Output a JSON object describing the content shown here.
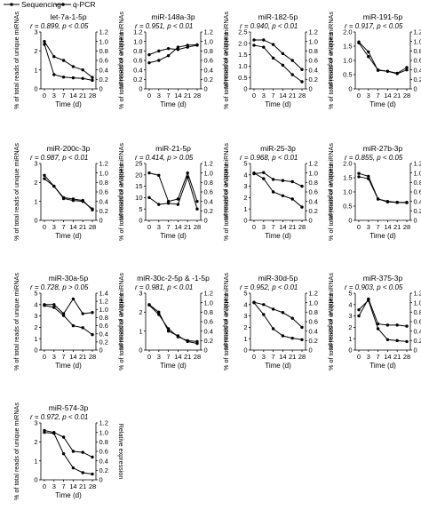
{
  "legend": {
    "sequencing_label": "Sequencing",
    "qpcr_label": "q-PCR"
  },
  "axes": {
    "y_left_label": "% of total reads of unique miRNAs",
    "y_right_label": "Relative expression",
    "x_label": "Time (d)"
  },
  "colors": {
    "line": "#000000",
    "background": "#ffffff"
  },
  "chart_data": [
    {
      "type": "line",
      "title": "let-7a-1-5p",
      "stat": "r = 0.899, p < 0.05",
      "categories": [
        "0",
        "3",
        "7",
        "14",
        "21",
        "28"
      ],
      "ylim_left": [
        0,
        3
      ],
      "yticks_left": [
        "0",
        "1",
        "2",
        "3"
      ],
      "ylim_right": [
        0,
        1.2
      ],
      "yticks_right": [
        "0",
        "0.2",
        "0.4",
        "0.6",
        "0.8",
        "1.0",
        "1.2"
      ],
      "series": [
        {
          "name": "Sequencing",
          "axis": "left",
          "values": [
            2.35,
            0.75,
            0.62,
            0.58,
            0.55,
            0.45
          ]
        },
        {
          "name": "q-PCR",
          "axis": "right",
          "values": [
            1.0,
            0.68,
            0.6,
            0.47,
            0.4,
            0.24
          ]
        }
      ]
    },
    {
      "type": "line",
      "title": "miR-148a-3p",
      "stat": "r = 0.951, p < 0.01",
      "categories": [
        "0",
        "3",
        "7",
        "14",
        "21",
        "28"
      ],
      "ylim_left": [
        0,
        1.2
      ],
      "yticks_left": [
        "0",
        "0.2",
        "0.4",
        "0.6",
        "0.8",
        "1.0",
        "1.2"
      ],
      "ylim_right": [
        0,
        1.2
      ],
      "yticks_right": [
        "0",
        "0.2",
        "0.4",
        "0.6",
        "0.8",
        "1.0",
        "1.2"
      ],
      "series": [
        {
          "name": "Sequencing",
          "axis": "left",
          "values": [
            0.72,
            0.8,
            0.85,
            0.83,
            0.88,
            0.92
          ]
        },
        {
          "name": "q-PCR",
          "axis": "right",
          "values": [
            0.55,
            0.6,
            0.7,
            0.88,
            0.92,
            0.93
          ]
        }
      ]
    },
    {
      "type": "line",
      "title": "miR-182-5p",
      "stat": "r = 0.940, p < 0.01",
      "categories": [
        "0",
        "3",
        "7",
        "14",
        "21",
        "28"
      ],
      "ylim_left": [
        0,
        2.5
      ],
      "yticks_left": [
        "0",
        "0.5",
        "1.0",
        "1.5",
        "2.0",
        "2.5"
      ],
      "ylim_right": [
        0,
        1.2
      ],
      "yticks_right": [
        "0",
        "0.2",
        "0.4",
        "0.6",
        "0.8",
        "1.0",
        "1.2"
      ],
      "series": [
        {
          "name": "Sequencing",
          "axis": "left",
          "values": [
            2.15,
            2.15,
            1.95,
            1.55,
            1.25,
            0.85
          ]
        },
        {
          "name": "q-PCR",
          "axis": "right",
          "values": [
            0.92,
            0.88,
            0.65,
            0.5,
            0.3,
            0.15
          ]
        }
      ]
    },
    {
      "type": "line",
      "title": "miR-191-5p",
      "stat": "r = 0.917, p < 0.05",
      "categories": [
        "0",
        "3",
        "7",
        "14",
        "21",
        "28"
      ],
      "ylim_left": [
        0,
        2.0
      ],
      "yticks_left": [
        "0",
        "0.5",
        "1.0",
        "1.5",
        "2.0"
      ],
      "ylim_right": [
        0,
        1.2
      ],
      "yticks_right": [
        "0",
        "0.2",
        "0.4",
        "0.6",
        "0.8",
        "1.0",
        "1.2"
      ],
      "series": [
        {
          "name": "Sequencing",
          "axis": "left",
          "values": [
            1.65,
            1.3,
            0.65,
            0.62,
            0.55,
            0.75
          ]
        },
        {
          "name": "q-PCR",
          "axis": "right",
          "values": [
            0.97,
            0.68,
            0.4,
            0.37,
            0.32,
            0.4
          ]
        }
      ]
    },
    {
      "type": "line",
      "title": "miR-200c-3p",
      "stat": "r = 0.987, p < 0.01",
      "categories": [
        "0",
        "3",
        "7",
        "14",
        "21",
        "28"
      ],
      "ylim_left": [
        0,
        3
      ],
      "yticks_left": [
        "0",
        "1",
        "2",
        "3"
      ],
      "ylim_right": [
        0,
        1.2
      ],
      "yticks_right": [
        "0",
        "0.2",
        "0.4",
        "0.6",
        "0.8",
        "1.0",
        "1.2"
      ],
      "series": [
        {
          "name": "Sequencing",
          "axis": "left",
          "values": [
            2.2,
            1.8,
            1.15,
            1.05,
            1.0,
            0.6
          ]
        },
        {
          "name": "q-PCR",
          "axis": "right",
          "values": [
            0.95,
            0.72,
            0.48,
            0.45,
            0.42,
            0.22
          ]
        }
      ]
    },
    {
      "type": "line",
      "title": "miR-21-5p",
      "stat": "r = 0.414, p > 0.05",
      "categories": [
        "0",
        "3",
        "7",
        "14",
        "21",
        "28"
      ],
      "ylim_left": [
        0,
        25
      ],
      "yticks_left": [
        "0",
        "5",
        "10",
        "15",
        "20",
        "25"
      ],
      "ylim_right": [
        0,
        1.2
      ],
      "yticks_right": [
        "0",
        "0.2",
        "0.4",
        "0.6",
        "0.8",
        "1.0",
        "1.2"
      ],
      "series": [
        {
          "name": "Sequencing",
          "axis": "left",
          "values": [
            10,
            7,
            7.5,
            7,
            19,
            5
          ]
        },
        {
          "name": "q-PCR",
          "axis": "right",
          "values": [
            1.0,
            0.95,
            0.4,
            0.45,
            1.0,
            0.4
          ]
        }
      ]
    },
    {
      "type": "line",
      "title": "miR-25-3p",
      "stat": "r = 0.968, p < 0.01",
      "categories": [
        "0",
        "3",
        "7",
        "14",
        "21",
        "28"
      ],
      "ylim_left": [
        0,
        5
      ],
      "yticks_left": [
        "0",
        "1",
        "2",
        "3",
        "4",
        "5"
      ],
      "ylim_right": [
        0,
        1.2
      ],
      "yticks_right": [
        "0",
        "0.2",
        "0.4",
        "0.6",
        "0.8",
        "1.0",
        "1.2"
      ],
      "series": [
        {
          "name": "Sequencing",
          "axis": "left",
          "values": [
            4.1,
            4.2,
            3.6,
            3.5,
            3.4,
            3.0
          ]
        },
        {
          "name": "q-PCR",
          "axis": "right",
          "values": [
            1.0,
            0.88,
            0.6,
            0.52,
            0.45,
            0.28
          ]
        }
      ]
    },
    {
      "type": "line",
      "title": "miR-27b-3p",
      "stat": "r = 0.855, p < 0.05",
      "categories": [
        "0",
        "3",
        "7",
        "14",
        "21",
        "28"
      ],
      "ylim_left": [
        0,
        2.0
      ],
      "yticks_left": [
        "0",
        "0.5",
        "1.0",
        "1.5",
        "2.0"
      ],
      "ylim_right": [
        0,
        1.2
      ],
      "yticks_right": [
        "0",
        "0.2",
        "0.4",
        "0.6",
        "0.8",
        "1.0",
        "1.2"
      ],
      "series": [
        {
          "name": "Sequencing",
          "axis": "left",
          "values": [
            1.65,
            1.55,
            0.75,
            0.65,
            0.63,
            0.62
          ]
        },
        {
          "name": "q-PCR",
          "axis": "right",
          "values": [
            0.92,
            0.88,
            0.45,
            0.4,
            0.38,
            0.38
          ]
        }
      ]
    },
    {
      "type": "line",
      "title": "miR-30a-5p",
      "stat": "r = 0.728, p > 0.05",
      "categories": [
        "0",
        "3",
        "7",
        "14",
        "21",
        "28"
      ],
      "ylim_left": [
        0,
        5
      ],
      "yticks_left": [
        "0",
        "1",
        "2",
        "3",
        "4",
        "5"
      ],
      "ylim_right": [
        0,
        1.4
      ],
      "yticks_right": [
        "0",
        "0.2",
        "0.4",
        "0.6",
        "0.8",
        "1.0",
        "1.2",
        "1.4"
      ],
      "series": [
        {
          "name": "Sequencing",
          "axis": "left",
          "values": [
            4.0,
            4.0,
            3.2,
            4.5,
            3.2,
            3.3
          ]
        },
        {
          "name": "q-PCR",
          "axis": "right",
          "values": [
            1.1,
            1.05,
            0.85,
            0.6,
            0.55,
            0.38
          ]
        }
      ]
    },
    {
      "type": "line",
      "title": "miR-30c-2-5p & -1-5p",
      "stat": "r = 0.981, p < 0.01",
      "categories": [
        "0",
        "3",
        "7",
        "14",
        "21",
        "28"
      ],
      "ylim_left": [
        0,
        3
      ],
      "yticks_left": [
        "0",
        "1",
        "2",
        "3"
      ],
      "ylim_right": [
        0,
        1.2
      ],
      "yticks_right": [
        "0",
        "0.2",
        "0.4",
        "0.6",
        "0.8",
        "1.0",
        "1.2"
      ],
      "series": [
        {
          "name": "Sequencing",
          "axis": "left",
          "values": [
            2.4,
            2.0,
            1.0,
            0.75,
            0.45,
            0.35
          ]
        },
        {
          "name": "q-PCR",
          "axis": "right",
          "values": [
            0.95,
            0.75,
            0.45,
            0.28,
            0.2,
            0.18
          ]
        }
      ]
    },
    {
      "type": "line",
      "title": "miR-30d-5p",
      "stat": "r = 0.952, p < 0.01",
      "categories": [
        "0",
        "3",
        "7",
        "14",
        "21",
        "28"
      ],
      "ylim_left": [
        0,
        5
      ],
      "yticks_left": [
        "0",
        "1",
        "2",
        "3",
        "4",
        "5"
      ],
      "ylim_right": [
        0,
        1.2
      ],
      "yticks_right": [
        "0",
        "0.2",
        "0.4",
        "0.6",
        "0.8",
        "1.0",
        "1.2"
      ],
      "series": [
        {
          "name": "Sequencing",
          "axis": "left",
          "values": [
            4.2,
            4.0,
            3.6,
            3.3,
            2.8,
            2.0
          ]
        },
        {
          "name": "q-PCR",
          "axis": "right",
          "values": [
            1.0,
            0.75,
            0.45,
            0.3,
            0.25,
            0.22
          ]
        }
      ]
    },
    {
      "type": "line",
      "title": "miR-375-3p",
      "stat": "r = 0.903, p < 0.05",
      "categories": [
        "0",
        "3",
        "7",
        "14",
        "21",
        "28"
      ],
      "ylim_left": [
        0,
        5
      ],
      "yticks_left": [
        "0",
        "1",
        "2",
        "3",
        "4",
        "5"
      ],
      "ylim_right": [
        0,
        1.2
      ],
      "yticks_right": [
        "0",
        "0.2",
        "0.4",
        "0.6",
        "0.8",
        "1.0",
        "1.2"
      ],
      "series": [
        {
          "name": "Sequencing",
          "axis": "left",
          "values": [
            3.0,
            4.5,
            2.3,
            2.2,
            2.2,
            2.1
          ]
        },
        {
          "name": "q-PCR",
          "axis": "right",
          "values": [
            0.85,
            1.05,
            0.45,
            0.22,
            0.2,
            0.18
          ]
        }
      ]
    },
    {
      "type": "line",
      "title": "miR-574-3p",
      "stat": "r = 0.972, p < 0.01",
      "categories": [
        "0",
        "3",
        "7",
        "14",
        "21",
        "28"
      ],
      "ylim_left": [
        0,
        3
      ],
      "yticks_left": [
        "0",
        "1",
        "2",
        "3"
      ],
      "ylim_right": [
        0,
        1.2
      ],
      "yticks_right": [
        "0",
        "0.2",
        "0.4",
        "0.6",
        "0.8",
        "1.0",
        "1.2"
      ],
      "series": [
        {
          "name": "Sequencing",
          "axis": "left",
          "values": [
            2.6,
            2.5,
            2.25,
            1.5,
            1.45,
            1.2
          ]
        },
        {
          "name": "q-PCR",
          "axis": "right",
          "values": [
            1.0,
            0.98,
            0.55,
            0.25,
            0.15,
            0.12
          ]
        }
      ]
    }
  ]
}
